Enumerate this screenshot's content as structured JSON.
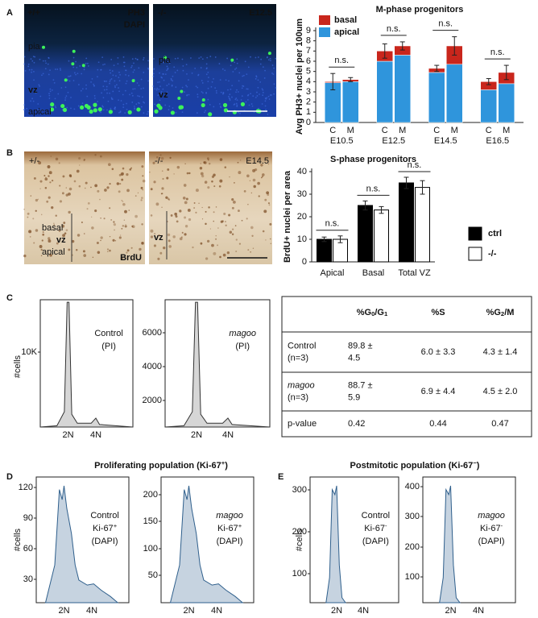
{
  "panel_a": {
    "letter": "A",
    "image_left": {
      "genotype": "+/+",
      "stain1": "PH3",
      "stain2": "DAPI",
      "labels": [
        "pia",
        "vz",
        "apical"
      ]
    },
    "image_right": {
      "genotype": "-/-",
      "stage": "E12.5",
      "labels": [
        "pia",
        "vz"
      ]
    }
  },
  "panel_b": {
    "letter": "B",
    "image_left": {
      "genotype": "+/-",
      "labels": [
        "basal",
        "vz",
        "apical"
      ],
      "stain": "BrdU"
    },
    "image_right": {
      "genotype": "-/-",
      "stage": "E14.5",
      "labels": [
        "vz"
      ]
    }
  },
  "chart_data": [
    {
      "type": "stacked_bar",
      "title": "M-phase progenitors",
      "ylabel": "Avg PH3+ nuclei per 100um",
      "categories": [
        "C",
        "M",
        "C",
        "M",
        "C",
        "M",
        "C",
        "M"
      ],
      "groups": [
        "E10.5",
        "E12.5",
        "E14.5",
        "E16.5"
      ],
      "series": [
        {
          "name": "apical",
          "color": "#2f95dc",
          "values": [
            3.9,
            4.0,
            6.0,
            6.6,
            4.9,
            5.7,
            3.2,
            3.8
          ]
        },
        {
          "name": "basal",
          "color": "#c9261c",
          "values": [
            0.1,
            0.2,
            1.0,
            0.9,
            0.4,
            1.8,
            0.8,
            1.1
          ]
        }
      ],
      "errors": [
        0.8,
        0.2,
        0.7,
        0.4,
        0.3,
        0.9,
        0.3,
        0.7
      ],
      "annotations": [
        "n.s.",
        "n.s.",
        "n.s.",
        "n.s."
      ],
      "ylim": [
        0,
        9
      ],
      "yticks": [
        0,
        1,
        2,
        3,
        4,
        5,
        6,
        7,
        8,
        9
      ]
    },
    {
      "type": "bar",
      "title": "S-phase progenitors",
      "ylabel": "BrdU+ nuclei per area",
      "categories": [
        "Apical",
        "Basal",
        "Total VZ"
      ],
      "series": [
        {
          "name": "ctrl",
          "color": "#000000",
          "values": [
            10,
            25,
            35
          ],
          "errors": [
            1,
            2,
            2.5
          ]
        },
        {
          "name": "-/-",
          "color": "#ffffff",
          "values": [
            10,
            23,
            33
          ],
          "errors": [
            1.5,
            1.5,
            3
          ]
        }
      ],
      "annotations": [
        "n.s.",
        "n.s.",
        "n.s."
      ],
      "ylim": [
        0,
        40
      ],
      "yticks": [
        0,
        10,
        20,
        30,
        40
      ]
    }
  ],
  "panel_c": {
    "letter": "C",
    "ylabel": "#cells",
    "xlabels": [
      "2N",
      "4N"
    ],
    "histograms": [
      {
        "label": [
          "Control",
          "(PI)"
        ],
        "italic": false,
        "ticks": [
          "10K"
        ]
      },
      {
        "label": [
          "magoo",
          "(PI)"
        ],
        "italic": true,
        "ticks": [
          "6000",
          "4000",
          "2000"
        ]
      }
    ],
    "table": {
      "columns": [
        [
          "%G",
          "0",
          "/G",
          "1"
        ],
        [
          "%S"
        ],
        [
          "%G",
          "2",
          "/M"
        ]
      ],
      "rows": [
        {
          "label": [
            "Control",
            "(n=3)"
          ],
          "italic": false,
          "cells": [
            [
              "89.8 ±",
              "4.5"
            ],
            [
              "6.0 ± 3.3"
            ],
            [
              "4.3 ± 1.4"
            ]
          ]
        },
        {
          "label": [
            "magoo",
            "(n=3)"
          ],
          "italic": true,
          "cells": [
            [
              "88.7 ±",
              "5.9"
            ],
            [
              "6.9 ± 4.4"
            ],
            [
              "4.5 ± 2.0"
            ]
          ]
        },
        {
          "label": [
            "p-value"
          ],
          "italic": false,
          "cells": [
            [
              "0.42"
            ],
            [
              "0.44"
            ],
            [
              "0.47"
            ]
          ]
        }
      ]
    }
  },
  "panel_d": {
    "letter": "D",
    "title": [
      "Proliferating population (Ki-67",
      "+",
      ")"
    ],
    "ylabel": "#cells",
    "xlabels": [
      "2N",
      "4N"
    ],
    "histograms": [
      {
        "label": [
          "Control",
          [
            "Ki-67",
            "+"
          ],
          "(DAPI)"
        ],
        "italic": false,
        "ticks": [
          "120",
          "90",
          "60",
          "30"
        ]
      },
      {
        "label": [
          "magoo",
          [
            "Ki-67",
            "+"
          ],
          "(DAPI)"
        ],
        "italic": true,
        "ticks": [
          "200",
          "150",
          "100",
          "50"
        ]
      }
    ]
  },
  "panel_e": {
    "letter": "E",
    "title": [
      "Postmitotic population (Ki-67",
      "−",
      ")"
    ],
    "ylabel": "#cells",
    "xlabels": [
      "2N",
      "4N"
    ],
    "histograms": [
      {
        "label": [
          "Control",
          [
            "Ki-67",
            "-"
          ],
          "(DAPI)"
        ],
        "italic": false,
        "ticks": [
          "300",
          "200",
          "100"
        ]
      },
      {
        "label": [
          "magoo",
          [
            "Ki-67",
            "-"
          ],
          "(DAPI)"
        ],
        "italic": true,
        "ticks": [
          "400",
          "300",
          "200",
          "100"
        ]
      }
    ]
  }
}
